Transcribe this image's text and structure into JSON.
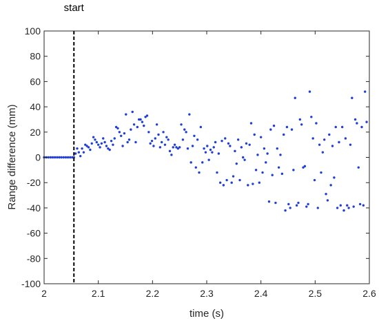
{
  "chart_data": {
    "type": "scatter",
    "title": "",
    "xlabel": "time (s)",
    "ylabel": "Range difference (mm)",
    "xlim": [
      2,
      2.6
    ],
    "ylim": [
      -100,
      100
    ],
    "xticks": [
      2,
      2.1,
      2.2,
      2.3,
      2.4,
      2.5,
      2.6
    ],
    "xtick_labels": [
      "2",
      "2.1",
      "2.2",
      "2.3",
      "2.4",
      "2.5",
      "2.6"
    ],
    "yticks": [
      -100,
      -80,
      -60,
      -40,
      -20,
      0,
      20,
      40,
      60,
      80,
      100
    ],
    "ytick_labels": [
      "-100",
      "-80",
      "-60",
      "-40",
      "-20",
      "0",
      "20",
      "40",
      "60",
      "80",
      "100"
    ],
    "grid": false,
    "marker_color": "#1f3fd6",
    "annotations": [
      {
        "label": "start",
        "x": 2.055,
        "style": "dashed-vertical",
        "color": "#000000"
      }
    ],
    "series": [
      {
        "points": [
          [
            2.0,
            0
          ],
          [
            2.004,
            0
          ],
          [
            2.008,
            0
          ],
          [
            2.012,
            0
          ],
          [
            2.016,
            0
          ],
          [
            2.02,
            0
          ],
          [
            2.024,
            0
          ],
          [
            2.028,
            0
          ],
          [
            2.032,
            0
          ],
          [
            2.036,
            0
          ],
          [
            2.04,
            0
          ],
          [
            2.044,
            0
          ],
          [
            2.048,
            0
          ],
          [
            2.052,
            0
          ],
          [
            2.055,
            0
          ],
          [
            2.058,
            3
          ],
          [
            2.061,
            7
          ],
          [
            2.064,
            4
          ],
          [
            2.067,
            1
          ],
          [
            2.07,
            7
          ],
          [
            2.073,
            4
          ],
          [
            2.076,
            10
          ],
          [
            2.079,
            9
          ],
          [
            2.082,
            8
          ],
          [
            2.085,
            6
          ],
          [
            2.088,
            11
          ],
          [
            2.091,
            16
          ],
          [
            2.094,
            14
          ],
          [
            2.097,
            12
          ],
          [
            2.1,
            10
          ],
          [
            2.103,
            8
          ],
          [
            2.106,
            11
          ],
          [
            2.109,
            15
          ],
          [
            2.112,
            12
          ],
          [
            2.115,
            9
          ],
          [
            2.118,
            7
          ],
          [
            2.121,
            6
          ],
          [
            2.124,
            13
          ],
          [
            2.127,
            10
          ],
          [
            2.13,
            15
          ],
          [
            2.133,
            24
          ],
          [
            2.136,
            23
          ],
          [
            2.139,
            20
          ],
          [
            2.142,
            17
          ],
          [
            2.145,
            9
          ],
          [
            2.148,
            19
          ],
          [
            2.151,
            34
          ],
          [
            2.154,
            12
          ],
          [
            2.157,
            14
          ],
          [
            2.16,
            22
          ],
          [
            2.163,
            36
          ],
          [
            2.166,
            26
          ],
          [
            2.169,
            12
          ],
          [
            2.172,
            24
          ],
          [
            2.175,
            30
          ],
          [
            2.178,
            30
          ],
          [
            2.181,
            28
          ],
          [
            2.184,
            25
          ],
          [
            2.187,
            32
          ],
          [
            2.19,
            33
          ],
          [
            2.193,
            20
          ],
          [
            2.196,
            11
          ],
          [
            2.199,
            13
          ],
          [
            2.202,
            9
          ],
          [
            2.205,
            15
          ],
          [
            2.208,
            26
          ],
          [
            2.211,
            18
          ],
          [
            2.214,
            8
          ],
          [
            2.217,
            12
          ],
          [
            2.22,
            20
          ],
          [
            2.223,
            10
          ],
          [
            2.226,
            16
          ],
          [
            2.229,
            14
          ],
          [
            2.232,
            5
          ],
          [
            2.235,
            2
          ],
          [
            2.238,
            8
          ],
          [
            2.241,
            10
          ],
          [
            2.244,
            8
          ],
          [
            2.247,
            7
          ],
          [
            2.25,
            8
          ],
          [
            2.253,
            26
          ],
          [
            2.256,
            14
          ],
          [
            2.259,
            22
          ],
          [
            2.262,
            20
          ],
          [
            2.265,
            7
          ],
          [
            2.268,
            34
          ],
          [
            2.271,
            -4
          ],
          [
            2.274,
            9
          ],
          [
            2.277,
            17
          ],
          [
            2.28,
            -8
          ],
          [
            2.283,
            14
          ],
          [
            2.286,
            -12
          ],
          [
            2.289,
            24
          ],
          [
            2.292,
            -4
          ],
          [
            2.295,
            7
          ],
          [
            2.298,
            4
          ],
          [
            2.301,
            9
          ],
          [
            2.304,
            -2
          ],
          [
            2.307,
            6
          ],
          [
            2.31,
            4
          ],
          [
            2.313,
            8
          ],
          [
            2.316,
            12
          ],
          [
            2.319,
            -12
          ],
          [
            2.322,
            3
          ],
          [
            2.325,
            -20
          ],
          [
            2.328,
            13
          ],
          [
            2.331,
            -22
          ],
          [
            2.334,
            15
          ],
          [
            2.337,
            -18
          ],
          [
            2.34,
            11
          ],
          [
            2.343,
            9
          ],
          [
            2.346,
            -20
          ],
          [
            2.349,
            -15
          ],
          [
            2.352,
            5
          ],
          [
            2.355,
            -5
          ],
          [
            2.358,
            14
          ],
          [
            2.361,
            -18
          ],
          [
            2.364,
            8
          ],
          [
            2.367,
            0
          ],
          [
            2.37,
            -2
          ],
          [
            2.373,
            11
          ],
          [
            2.376,
            -22
          ],
          [
            2.379,
            10
          ],
          [
            2.382,
            27
          ],
          [
            2.385,
            -21
          ],
          [
            2.388,
            18
          ],
          [
            2.391,
            -10
          ],
          [
            2.394,
            2
          ],
          [
            2.397,
            -20
          ],
          [
            2.4,
            16
          ],
          [
            2.403,
            -12
          ],
          [
            2.406,
            7
          ],
          [
            2.409,
            -4
          ],
          [
            2.412,
            3
          ],
          [
            2.415,
            -35
          ],
          [
            2.418,
            22
          ],
          [
            2.421,
            -14
          ],
          [
            2.424,
            25
          ],
          [
            2.427,
            -36
          ],
          [
            2.43,
            7
          ],
          [
            2.433,
            -8
          ],
          [
            2.436,
            2
          ],
          [
            2.439,
            -13
          ],
          [
            2.442,
            18
          ],
          [
            2.445,
            -42
          ],
          [
            2.448,
            24
          ],
          [
            2.451,
            -37
          ],
          [
            2.454,
            -40
          ],
          [
            2.457,
            22
          ],
          [
            2.46,
            -10
          ],
          [
            2.463,
            47
          ],
          [
            2.466,
            -38
          ],
          [
            2.469,
            -36
          ],
          [
            2.472,
            30
          ],
          [
            2.475,
            26
          ],
          [
            2.478,
            -8
          ],
          [
            2.481,
            -7
          ],
          [
            2.484,
            -39
          ],
          [
            2.487,
            -37
          ],
          [
            2.49,
            52
          ],
          [
            2.493,
            32
          ],
          [
            2.496,
            15
          ],
          [
            2.499,
            -18
          ],
          [
            2.502,
            27
          ],
          [
            2.505,
            -40
          ],
          [
            2.508,
            10
          ],
          [
            2.511,
            -12
          ],
          [
            2.514,
            4
          ],
          [
            2.517,
            14
          ],
          [
            2.52,
            -29
          ],
          [
            2.523,
            -34
          ],
          [
            2.526,
            18
          ],
          [
            2.529,
            -22
          ],
          [
            2.532,
            9
          ],
          [
            2.535,
            -16
          ],
          [
            2.538,
            24
          ],
          [
            2.541,
            -40
          ],
          [
            2.544,
            12
          ],
          [
            2.547,
            -38
          ],
          [
            2.55,
            24
          ],
          [
            2.553,
            -42
          ],
          [
            2.556,
            15
          ],
          [
            2.559,
            -38
          ],
          [
            2.562,
            -40
          ],
          [
            2.565,
            10
          ],
          [
            2.568,
            47
          ],
          [
            2.571,
            -39
          ],
          [
            2.574,
            30
          ],
          [
            2.577,
            27
          ],
          [
            2.58,
            -8
          ],
          [
            2.583,
            -37
          ],
          [
            2.586,
            24
          ],
          [
            2.589,
            -38
          ],
          [
            2.592,
            52
          ],
          [
            2.595,
            28
          ]
        ]
      }
    ]
  }
}
